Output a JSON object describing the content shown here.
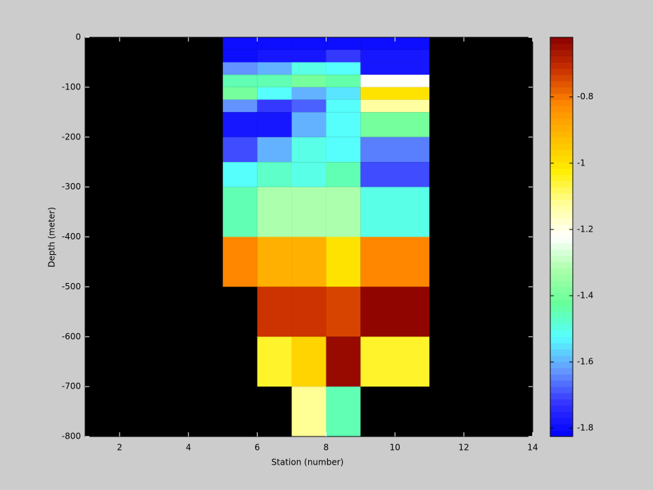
{
  "chart_data": {
    "type": "heatmap",
    "xlabel": "Station (number)",
    "ylabel": "Depth (meter)",
    "x_edges": [
      5,
      6,
      7,
      8,
      9,
      11
    ],
    "y_edges": [
      0,
      -25,
      -50,
      -75,
      -100,
      -125,
      -150,
      -200,
      -250,
      -300,
      -400,
      -500,
      -600,
      -700,
      -800
    ],
    "values": [
      [
        -1.8,
        -1.8,
        -1.8,
        -1.8,
        -1.8
      ],
      [
        -1.8,
        -1.78,
        -1.78,
        -1.72,
        -1.78
      ],
      [
        -1.63,
        -1.6,
        -1.5,
        -1.52,
        -1.78
      ],
      [
        -1.45,
        -1.45,
        -1.4,
        -1.44,
        -1.22
      ],
      [
        -1.4,
        -1.52,
        -1.6,
        -1.55,
        -1.0
      ],
      [
        -1.63,
        -1.72,
        -1.68,
        -1.52,
        -1.13
      ],
      [
        -1.78,
        -1.78,
        -1.6,
        -1.52,
        -1.4
      ],
      [
        -1.7,
        -1.6,
        -1.5,
        -1.52,
        -1.65
      ],
      [
        -1.52,
        -1.47,
        -1.5,
        -1.45,
        -1.7
      ],
      [
        -1.45,
        -1.32,
        -1.32,
        -1.32,
        -1.5
      ],
      [
        -0.82,
        -0.9,
        -0.9,
        -1.0,
        -0.82
      ],
      [
        null,
        -0.72,
        -0.72,
        -0.74,
        -0.63
      ],
      [
        null,
        -1.05,
        -0.97,
        -0.64,
        -1.05
      ],
      [
        null,
        null,
        -1.12,
        -1.45,
        null
      ]
    ],
    "xlim": [
      1,
      14
    ],
    "xticks": [
      2,
      4,
      6,
      8,
      10,
      12,
      14
    ],
    "ylim": [
      -800,
      0
    ],
    "yticks": [
      -800,
      -700,
      -600,
      -500,
      -400,
      -300,
      -200,
      -100,
      0
    ],
    "clim": [
      -1.825,
      -0.62
    ],
    "cticks": [
      -1.8,
      -1.6,
      -1.4,
      -1.2,
      -1,
      -0.8
    ],
    "colormap": [
      "#0000ff",
      "#3333ff",
      "#6699ff",
      "#55ffff",
      "#66ff99",
      "#aaffaa",
      "#ffffff",
      "#ffff99",
      "#ffee00",
      "#ffbb00",
      "#ff8800",
      "#cc3300",
      "#8b0000"
    ],
    "background": "#000000"
  }
}
